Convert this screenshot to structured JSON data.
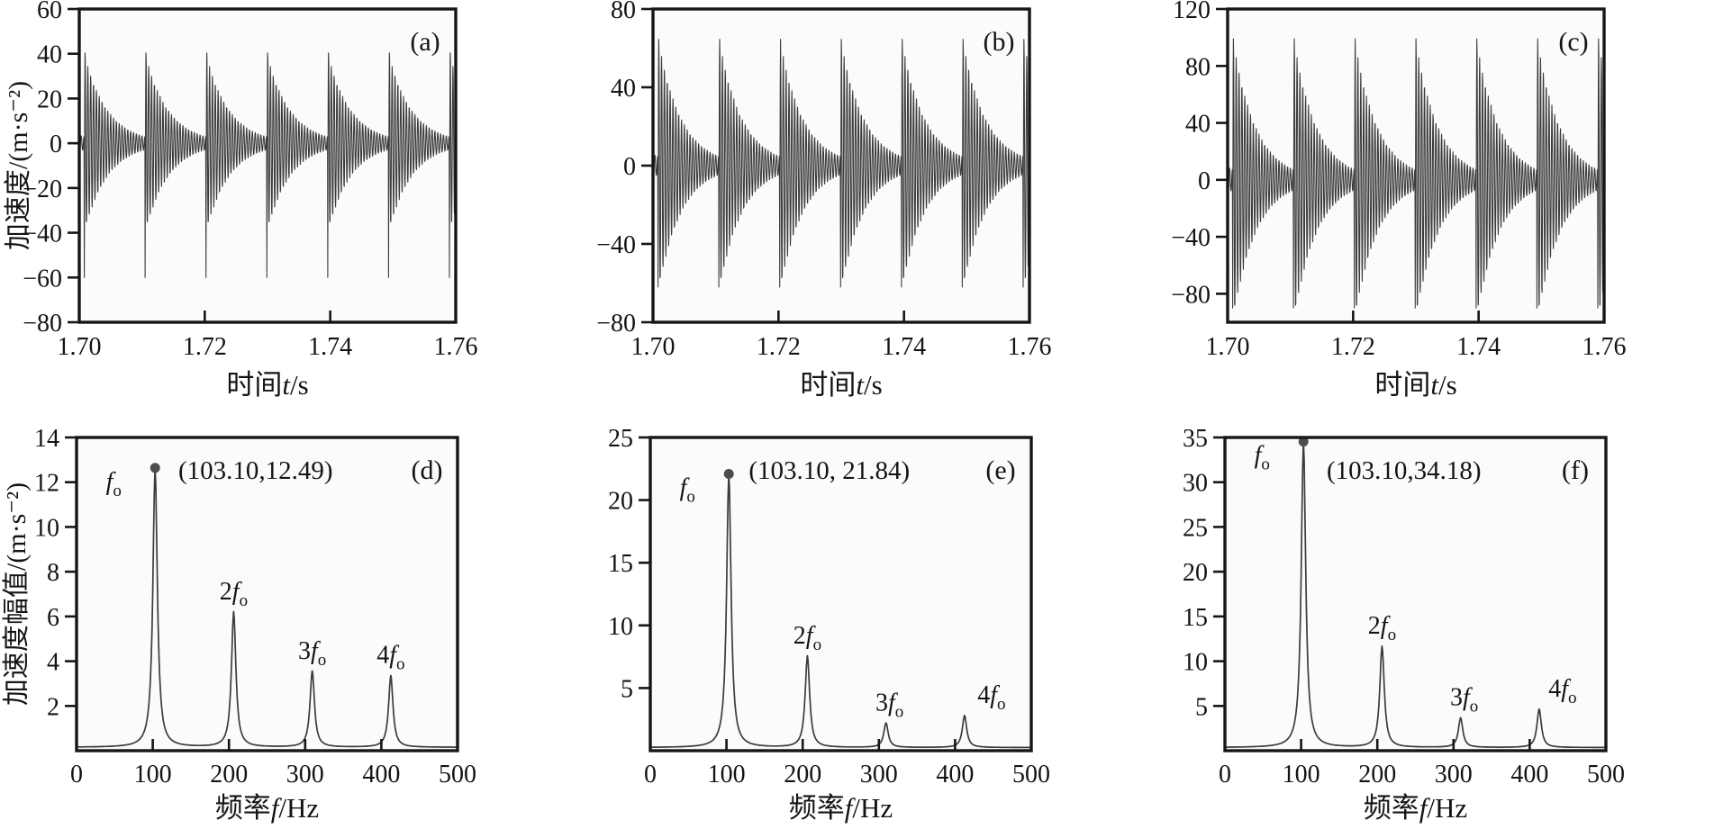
{
  "style": {
    "line_color": "#3c3c3c",
    "axis_color": "#161616",
    "marker_color": "#4d4d4d",
    "plot_bg": "#fbfbfb",
    "text_color": "#141414"
  },
  "chart_data": [
    {
      "id": "a",
      "type": "line",
      "subtype": "waveform",
      "panel_label": "(a)",
      "title": "",
      "xlabel": {
        "pre": "时间",
        "italic": "t",
        "post": "/s"
      },
      "ylabel": "加速度/(m·s⁻²)",
      "xlim": [
        1.7,
        1.76
      ],
      "xticks": [
        1.7,
        1.72,
        1.74,
        1.76
      ],
      "xtick_decimals": 2,
      "ylim": [
        -80,
        60
      ],
      "yticks": [
        60,
        40,
        20,
        0,
        -20,
        -40,
        -60,
        -80
      ],
      "grid": false,
      "legend": null,
      "waveform": {
        "impulse_freq_hz": 103.1,
        "first_burst_t_s": 1.7008,
        "carrier_freq_hz": 2200,
        "osc_peak_amp": 40,
        "initial_spike_amp": 60,
        "osc_decay_tau_s": 0.0037,
        "spike_decay_tau_s": 0.0001,
        "tail_amp_at_period_end": 3
      }
    },
    {
      "id": "b",
      "type": "line",
      "subtype": "waveform",
      "panel_label": "(b)",
      "title": "",
      "xlabel": {
        "pre": "时间",
        "italic": "t",
        "post": "/s"
      },
      "ylabel": null,
      "xlim": [
        1.7,
        1.76
      ],
      "xticks": [
        1.7,
        1.72,
        1.74,
        1.76
      ],
      "xtick_decimals": 2,
      "ylim": [
        -80,
        80
      ],
      "yticks": [
        80,
        40,
        0,
        -40,
        -80
      ],
      "grid": false,
      "legend": null,
      "waveform": {
        "impulse_freq_hz": 103.1,
        "first_burst_t_s": 1.7008,
        "carrier_freq_hz": 2200,
        "osc_peak_amp": 65,
        "initial_spike_amp": 62,
        "osc_decay_tau_s": 0.0037,
        "spike_decay_tau_s": 0.0001,
        "tail_amp_at_period_end": 5
      }
    },
    {
      "id": "c",
      "type": "line",
      "subtype": "waveform",
      "panel_label": "(c)",
      "title": "",
      "xlabel": {
        "pre": "时间",
        "italic": "t",
        "post": "/s"
      },
      "ylabel": null,
      "xlim": [
        1.7,
        1.76
      ],
      "xticks": [
        1.7,
        1.72,
        1.74,
        1.76
      ],
      "xtick_decimals": 2,
      "ylim": [
        -100,
        120
      ],
      "yticks": [
        120,
        80,
        40,
        0,
        -40,
        -80
      ],
      "grid": false,
      "legend": null,
      "waveform": {
        "impulse_freq_hz": 103.1,
        "first_burst_t_s": 1.7008,
        "carrier_freq_hz": 2200,
        "osc_peak_amp": 100,
        "initial_spike_amp": 90,
        "osc_decay_tau_s": 0.0037,
        "spike_decay_tau_s": 0.0001,
        "tail_amp_at_period_end": 7
      }
    },
    {
      "id": "d",
      "type": "line",
      "subtype": "spectrum",
      "panel_label": "(d)",
      "title": "",
      "xlabel": {
        "pre": "频率",
        "italic": "f",
        "post": "/Hz"
      },
      "ylabel": "加速度幅值/(m·s⁻²)",
      "xlim": [
        0,
        500
      ],
      "xticks": [
        0,
        100,
        200,
        300,
        400,
        500
      ],
      "xtick_decimals": 0,
      "ylim": [
        0,
        14
      ],
      "yticks": [
        2,
        4,
        6,
        8,
        10,
        12,
        14
      ],
      "grid": false,
      "legend": null,
      "annotation": "(103.10,12.49)",
      "peak_halfwidth_hz": 3.5,
      "baseline": 0.15,
      "peaks": [
        {
          "freq": 103.1,
          "amp": 12.49,
          "label": "f_o",
          "label_pos": "left"
        },
        {
          "freq": 206.2,
          "amp": 6.05,
          "label": "2f_o",
          "label_pos": "above",
          "label_dx": 0
        },
        {
          "freq": 309.3,
          "amp": 3.4,
          "label": "3f_o",
          "label_pos": "above",
          "label_dx": 0
        },
        {
          "freq": 412.4,
          "amp": 3.2,
          "label": "4f_o",
          "label_pos": "above",
          "label_dx": 0
        }
      ],
      "marker_on_peak": {
        "freq": 103.1,
        "amp": 12.49
      }
    },
    {
      "id": "e",
      "type": "line",
      "subtype": "spectrum",
      "panel_label": "(e)",
      "title": "",
      "xlabel": {
        "pre": "频率",
        "italic": "f",
        "post": "/Hz"
      },
      "ylabel": null,
      "xlim": [
        0,
        500
      ],
      "xticks": [
        0,
        100,
        200,
        300,
        400,
        500
      ],
      "xtick_decimals": 0,
      "ylim": [
        0,
        25
      ],
      "yticks": [
        5,
        10,
        15,
        20,
        25
      ],
      "grid": false,
      "legend": null,
      "annotation": "(103.10, 21.84)",
      "peak_halfwidth_hz": 3.5,
      "baseline": 0.25,
      "peaks": [
        {
          "freq": 103.1,
          "amp": 21.84,
          "label": "f_o",
          "label_pos": "left"
        },
        {
          "freq": 206.2,
          "amp": 7.3,
          "label": "2f_o",
          "label_pos": "above",
          "label_dx": 0
        },
        {
          "freq": 309.3,
          "amp": 1.95,
          "label": "3f_o",
          "label_pos": "above",
          "label_dx": 4
        },
        {
          "freq": 412.4,
          "amp": 2.55,
          "label": "4f_o",
          "label_pos": "above",
          "label_dx": 30
        }
      ],
      "marker_on_peak": {
        "freq": 103.1,
        "amp": 21.84
      }
    },
    {
      "id": "f",
      "type": "line",
      "subtype": "spectrum",
      "panel_label": "(f)",
      "title": "",
      "xlabel": {
        "pre": "频率",
        "italic": "f",
        "post": "/Hz"
      },
      "ylabel": null,
      "xlim": [
        0,
        500
      ],
      "xticks": [
        0,
        100,
        200,
        300,
        400,
        500
      ],
      "xtick_decimals": 0,
      "ylim": [
        0,
        35
      ],
      "yticks": [
        5,
        10,
        15,
        20,
        25,
        30,
        35
      ],
      "grid": false,
      "legend": null,
      "annotation": "(103.10,34.18)",
      "peak_halfwidth_hz": 3.5,
      "baseline": 0.35,
      "peaks": [
        {
          "freq": 103.1,
          "amp": 34.18,
          "label": "f_o",
          "label_pos": "left"
        },
        {
          "freq": 206.2,
          "amp": 11.3,
          "label": "2f_o",
          "label_pos": "above",
          "label_dx": 0
        },
        {
          "freq": 309.3,
          "amp": 3.3,
          "label": "3f_o",
          "label_pos": "above",
          "label_dx": 4
        },
        {
          "freq": 412.4,
          "amp": 4.3,
          "label": "4f_o",
          "label_pos": "above",
          "label_dx": 26
        }
      ],
      "marker_on_peak": {
        "freq": 103.1,
        "amp": 34.18
      }
    }
  ]
}
